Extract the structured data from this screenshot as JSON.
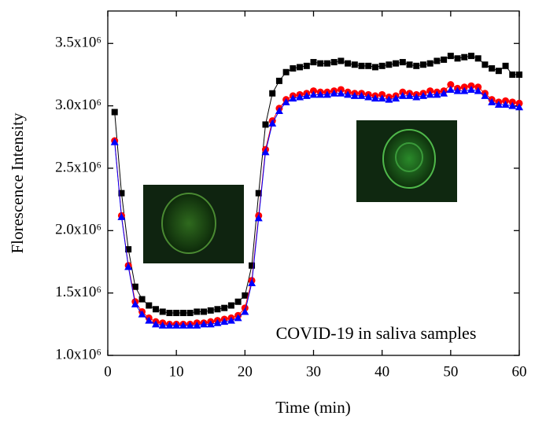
{
  "chart_data": {
    "type": "line",
    "xlabel": "Time (min)",
    "ylabel": "Florescence Intensity",
    "annotation": "COVID-19 in saliva samples",
    "xlim": [
      0,
      60
    ],
    "xticks": [
      0,
      10,
      20,
      30,
      40,
      50,
      60
    ],
    "ylim": [
      1000000,
      3760000
    ],
    "yticks": [
      {
        "value": 1000000,
        "label": "1.0x10⁶"
      },
      {
        "value": 1500000,
        "label": "1.5x10⁶"
      },
      {
        "value": 2000000,
        "label": "2.0x10⁶"
      },
      {
        "value": 2500000,
        "label": "2.5x10⁶"
      },
      {
        "value": 3000000,
        "label": "3.0x10⁶"
      },
      {
        "value": 3500000,
        "label": "3.5x10⁶"
      }
    ],
    "x": [
      1,
      2,
      3,
      4,
      5,
      6,
      7,
      8,
      9,
      10,
      11,
      12,
      13,
      14,
      15,
      16,
      17,
      18,
      19,
      20,
      21,
      22,
      23,
      24,
      25,
      26,
      27,
      28,
      29,
      30,
      31,
      32,
      33,
      34,
      35,
      36,
      37,
      38,
      39,
      40,
      41,
      42,
      43,
      44,
      45,
      46,
      47,
      48,
      49,
      50,
      51,
      52,
      53,
      54,
      55,
      56,
      57,
      58,
      59,
      60
    ],
    "series": [
      {
        "color": "#000000",
        "marker": "square",
        "values": [
          2950000,
          2300000,
          1850000,
          1550000,
          1450000,
          1400000,
          1370000,
          1350000,
          1340000,
          1340000,
          1340000,
          1340000,
          1350000,
          1350000,
          1360000,
          1370000,
          1380000,
          1400000,
          1430000,
          1480000,
          1720000,
          2300000,
          2850000,
          3100000,
          3200000,
          3270000,
          3300000,
          3310000,
          3320000,
          3350000,
          3340000,
          3340000,
          3350000,
          3360000,
          3340000,
          3330000,
          3320000,
          3320000,
          3310000,
          3320000,
          3330000,
          3340000,
          3350000,
          3330000,
          3320000,
          3330000,
          3340000,
          3360000,
          3370000,
          3400000,
          3380000,
          3390000,
          3400000,
          3380000,
          3330000,
          3300000,
          3280000,
          3320000,
          3250000,
          3250000
        ]
      },
      {
        "color": "#ff0000",
        "marker": "circle",
        "values": [
          2720000,
          2120000,
          1720000,
          1430000,
          1350000,
          1300000,
          1270000,
          1260000,
          1250000,
          1250000,
          1250000,
          1250000,
          1260000,
          1260000,
          1270000,
          1280000,
          1290000,
          1300000,
          1320000,
          1380000,
          1600000,
          2120000,
          2650000,
          2880000,
          2980000,
          3050000,
          3080000,
          3090000,
          3100000,
          3120000,
          3110000,
          3110000,
          3120000,
          3130000,
          3110000,
          3100000,
          3100000,
          3090000,
          3080000,
          3090000,
          3070000,
          3080000,
          3110000,
          3100000,
          3090000,
          3100000,
          3120000,
          3110000,
          3120000,
          3170000,
          3140000,
          3150000,
          3160000,
          3150000,
          3100000,
          3050000,
          3030000,
          3040000,
          3030000,
          3020000
        ]
      },
      {
        "color": "#0000ff",
        "marker": "triangle",
        "values": [
          2710000,
          2110000,
          1710000,
          1410000,
          1330000,
          1280000,
          1250000,
          1240000,
          1240000,
          1240000,
          1240000,
          1240000,
          1240000,
          1250000,
          1250000,
          1260000,
          1270000,
          1280000,
          1300000,
          1350000,
          1580000,
          2100000,
          2630000,
          2860000,
          2960000,
          3030000,
          3060000,
          3070000,
          3080000,
          3090000,
          3090000,
          3090000,
          3100000,
          3100000,
          3090000,
          3080000,
          3080000,
          3070000,
          3060000,
          3060000,
          3050000,
          3060000,
          3080000,
          3080000,
          3070000,
          3080000,
          3090000,
          3090000,
          3100000,
          3130000,
          3120000,
          3120000,
          3130000,
          3120000,
          3080000,
          3030000,
          3010000,
          3010000,
          3000000,
          2990000
        ]
      }
    ]
  }
}
